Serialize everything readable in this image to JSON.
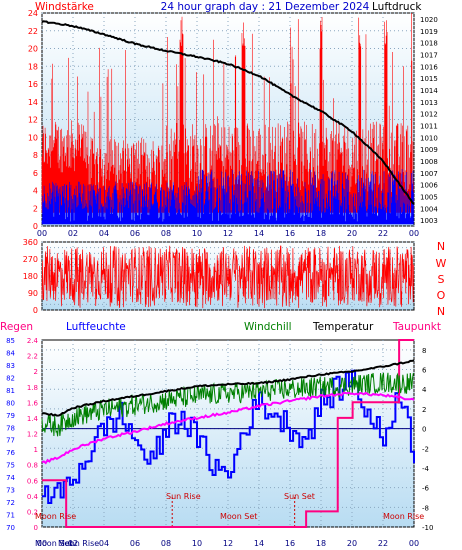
{
  "header": {
    "left_label": "Windstärke",
    "title": "24 hour graph day : 21 Dezember 2024",
    "right_label": "Luftdruck"
  },
  "x_ticks": [
    "00",
    "02",
    "04",
    "06",
    "08",
    "10",
    "12",
    "14",
    "16",
    "18",
    "20",
    "22",
    "00"
  ],
  "legend": {
    "regen": "Regen",
    "luftfeuchte": "Luftfeuchte",
    "windchill": "Windchill",
    "temperatur": "Temperatur",
    "taupunkt": "Taupunkt"
  },
  "direction_letters": [
    "N",
    "W",
    "S",
    "O",
    "N"
  ],
  "astro": {
    "moon_rise_1": "Moon Rise",
    "sun_rise": "Sun Rise",
    "moon_set": "Moon Set",
    "sun_set": "Sun Set",
    "moon_rise_2": "Moon Rise",
    "bottom_moon_set": "Moon Set",
    "bottom_moon_rise": "Moon Rise"
  },
  "colors": {
    "wind_gust": "#ff0000",
    "wind_avg": "#0000ff",
    "pressure": "#000000",
    "direction": "#ff0000",
    "rain": "#ff0080",
    "humidity": "#0000ff",
    "windchill": "#008000",
    "temperature": "#000000",
    "dewpoint": "#ff00ff",
    "header_blue": "#0000cc",
    "plot_bg_top": "#ffffff",
    "plot_bg_bottom": "#b8dcf2"
  },
  "chart_data": [
    {
      "type": "line",
      "title": "24 hour graph day : 21 Dezember 2024",
      "left_axis": {
        "label": "Windstärke",
        "ticks": [
          0,
          2,
          4,
          6,
          8,
          10,
          12,
          14,
          16,
          18,
          20,
          22,
          24
        ],
        "range": [
          0,
          24
        ]
      },
      "right_axis": {
        "label": "Luftdruck",
        "ticks": [
          1003,
          1004,
          1005,
          1006,
          1007,
          1008,
          1009,
          1010,
          1011,
          1012,
          1013,
          1014,
          1015,
          1016,
          1017,
          1018,
          1019,
          1020
        ],
        "range": [
          1002.5,
          1020.5
        ]
      },
      "series": [
        {
          "name": "Windstärke (Böen)",
          "axis": "left",
          "baseline": 7,
          "spread": 8,
          "peak_hours": [
            9,
            13,
            18,
            20.5,
            22.2
          ]
        },
        {
          "name": "Windstärke (Mittel)",
          "axis": "left",
          "baseline": 2.8,
          "spread": 4
        },
        {
          "name": "Luftdruck",
          "axis": "right",
          "x_hours": [
            0,
            2,
            4,
            6,
            8,
            10,
            12,
            14,
            16,
            18,
            20,
            22,
            24
          ],
          "values": [
            1019.8,
            1019.4,
            1018.7,
            1017.9,
            1017.3,
            1016.8,
            1016.2,
            1015.2,
            1013.6,
            1012.2,
            1010.5,
            1008.0,
            1004.3
          ]
        }
      ]
    },
    {
      "type": "scatter",
      "title": "",
      "left_axis": {
        "ticks": [
          0,
          30,
          60,
          90,
          120,
          150,
          180,
          210,
          240,
          270,
          300,
          330,
          360
        ],
        "range": [
          0,
          360
        ]
      },
      "right_axis": {
        "ticks": [
          "N",
          "W",
          "S",
          "O",
          "N"
        ]
      },
      "series": [
        {
          "name": "Windrichtung",
          "center": 190,
          "spread": 150
        }
      ]
    },
    {
      "type": "line",
      "title": "",
      "rain_axis": {
        "label": "Regen",
        "ticks": [
          0,
          0.2,
          0.4,
          0.6,
          0.8,
          1,
          1.2,
          1.4,
          1.6,
          1.8,
          2,
          2.2,
          2.4
        ],
        "range": [
          0,
          2.4
        ]
      },
      "humidity_axis": {
        "label": "Luftfeuchte",
        "ticks": [
          70,
          71,
          72,
          73,
          74,
          75,
          76,
          77,
          78,
          79,
          80,
          81,
          82,
          83,
          84,
          85
        ],
        "range": [
          70,
          85
        ]
      },
      "temperature_axis": {
        "ticks": [
          -10,
          -8,
          -6,
          -4,
          -2,
          0,
          2,
          4,
          6,
          8
        ],
        "range": [
          -10,
          9
        ]
      },
      "series": [
        {
          "name": "Temperatur",
          "axis": "temperature",
          "x_hours": [
            0,
            1,
            2,
            4,
            6,
            8,
            10,
            12,
            14,
            16,
            18,
            20,
            22,
            24
          ],
          "values": [
            1.6,
            1.3,
            2.1,
            2.8,
            3.3,
            3.8,
            4.3,
            4.5,
            4.6,
            5.0,
            5.5,
            5.8,
            6.3,
            6.9
          ]
        },
        {
          "name": "Windchill",
          "axis": "temperature",
          "x_hours": [
            0,
            1,
            2,
            4,
            6,
            8,
            10,
            12,
            14,
            16,
            18,
            20,
            22,
            24
          ],
          "values": [
            0.6,
            0.2,
            1.2,
            1.9,
            2.4,
            2.9,
            3.3,
            3.6,
            3.8,
            4.0,
            4.2,
            4.4,
            4.7,
            4.6
          ]
        },
        {
          "name": "Taupunkt",
          "axis": "temperature",
          "x_hours": [
            0,
            1,
            2,
            4,
            6,
            8,
            10,
            12,
            14,
            16,
            18,
            20,
            22,
            24
          ],
          "values": [
            -3.5,
            -3.0,
            -2.1,
            -1.0,
            -0.3,
            0.5,
            1.1,
            1.6,
            2.3,
            2.8,
            3.3,
            3.6,
            3.4,
            2.9
          ]
        },
        {
          "name": "Luftfeuchte",
          "axis": "humidity",
          "x_hours": [
            0,
            1,
            2,
            3,
            4,
            5,
            6,
            7,
            8,
            9,
            10,
            11,
            12,
            13,
            14,
            15,
            16,
            17,
            18,
            19,
            20,
            21,
            22,
            23,
            24
          ],
          "values": [
            73,
            72.5,
            74,
            76,
            78,
            79,
            77,
            75,
            78,
            79,
            77,
            75,
            74,
            78,
            80,
            79,
            78,
            77,
            80,
            81,
            82,
            79,
            77,
            81,
            76
          ]
        },
        {
          "name": "Regen",
          "axis": "rain",
          "x_hours": [
            0,
            1.5,
            16.5,
            17,
            18.5,
            19,
            20,
            22.5,
            23,
            24
          ],
          "values": [
            0.6,
            0,
            0,
            0.2,
            0.2,
            1.4,
            1.6,
            1.6,
            2.4,
            2.4
          ]
        }
      ]
    }
  ]
}
